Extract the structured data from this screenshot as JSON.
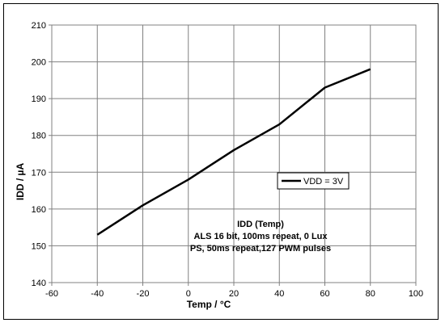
{
  "chart_data": {
    "type": "line",
    "xlabel": "Temp / °C",
    "ylabel": "IDD / µA",
    "xlim": [
      -60,
      100
    ],
    "ylim": [
      140,
      210
    ],
    "xticks": [
      -60,
      -40,
      -20,
      0,
      20,
      40,
      60,
      80,
      100
    ],
    "yticks": [
      140,
      150,
      160,
      170,
      180,
      190,
      200,
      210
    ],
    "grid": true,
    "legend_position": "center-right",
    "series": [
      {
        "name": "VDD = 3V",
        "color": "#000000",
        "x": [
          -40,
          -20,
          0,
          20,
          40,
          60,
          80
        ],
        "y": [
          153,
          161,
          168,
          176,
          183,
          193,
          198
        ]
      }
    ],
    "annotation": [
      "IDD (Temp)",
      "ALS 16 bit, 100ms repeat, 0 Lux",
      "PS, 50ms repeat,127 PWM pulses"
    ]
  }
}
